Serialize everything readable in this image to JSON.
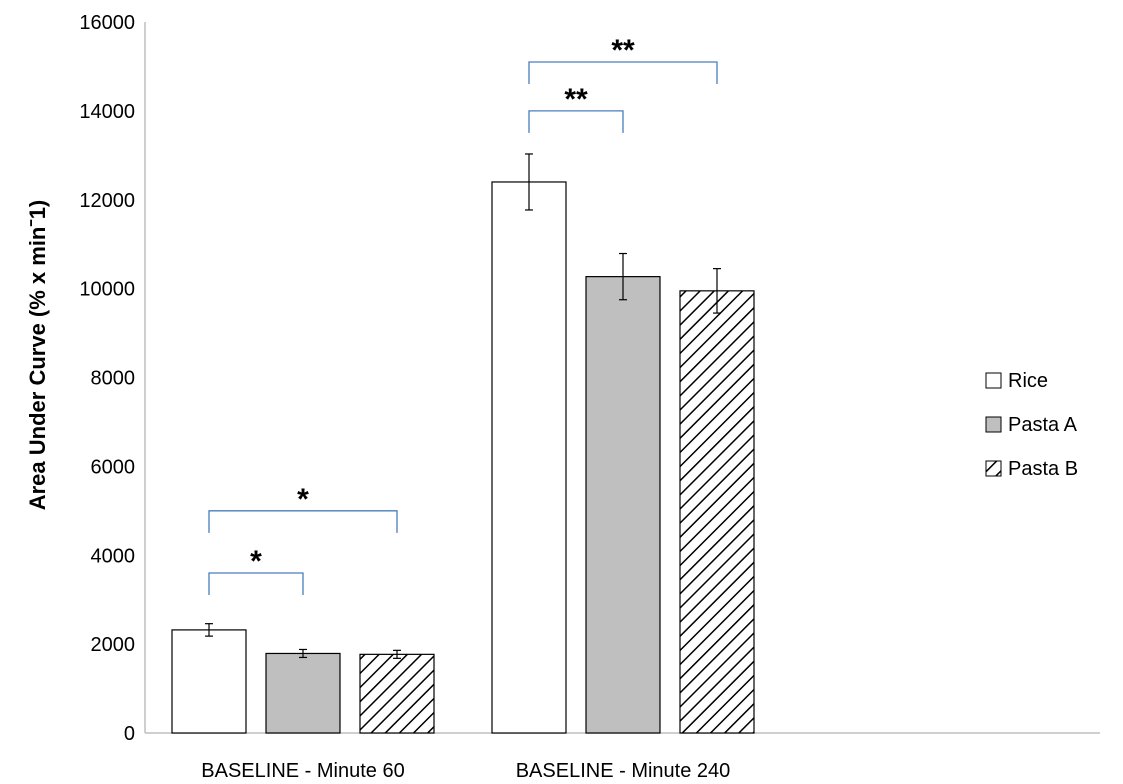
{
  "chart_data": {
    "type": "bar",
    "ylabel": "Area Under Curve (% x minˉ1)",
    "ylim": [
      0,
      16000
    ],
    "yticks": [
      0,
      2000,
      4000,
      6000,
      8000,
      10000,
      12000,
      14000,
      16000
    ],
    "categories": [
      "BASELINE - Minute 60",
      "BASELINE - Minute 240"
    ],
    "series": [
      {
        "name": "Rice",
        "values": [
          2320,
          12400
        ],
        "errors": [
          140,
          630
        ],
        "fill": "#ffffff",
        "pattern": "none"
      },
      {
        "name": "Pasta A",
        "values": [
          1790,
          10270
        ],
        "errors": [
          90,
          520
        ],
        "fill": "#bfbfbf",
        "pattern": "none"
      },
      {
        "name": "Pasta B",
        "values": [
          1770,
          9950
        ],
        "errors": [
          90,
          500
        ],
        "fill": "#ffffff",
        "pattern": "diagonal-hatch"
      }
    ],
    "legend": {
      "position": "right"
    },
    "significance": [
      {
        "category": 0,
        "from": 0,
        "to": 1,
        "label": "*",
        "level": 3600
      },
      {
        "category": 0,
        "from": 0,
        "to": 2,
        "label": "*",
        "level": 5000
      },
      {
        "category": 1,
        "from": 0,
        "to": 1,
        "label": "**",
        "level": 14000
      },
      {
        "category": 1,
        "from": 0,
        "to": 2,
        "label": "**",
        "level": 15100
      }
    ],
    "bracket_color": "#4a7ebb",
    "grid": false
  }
}
